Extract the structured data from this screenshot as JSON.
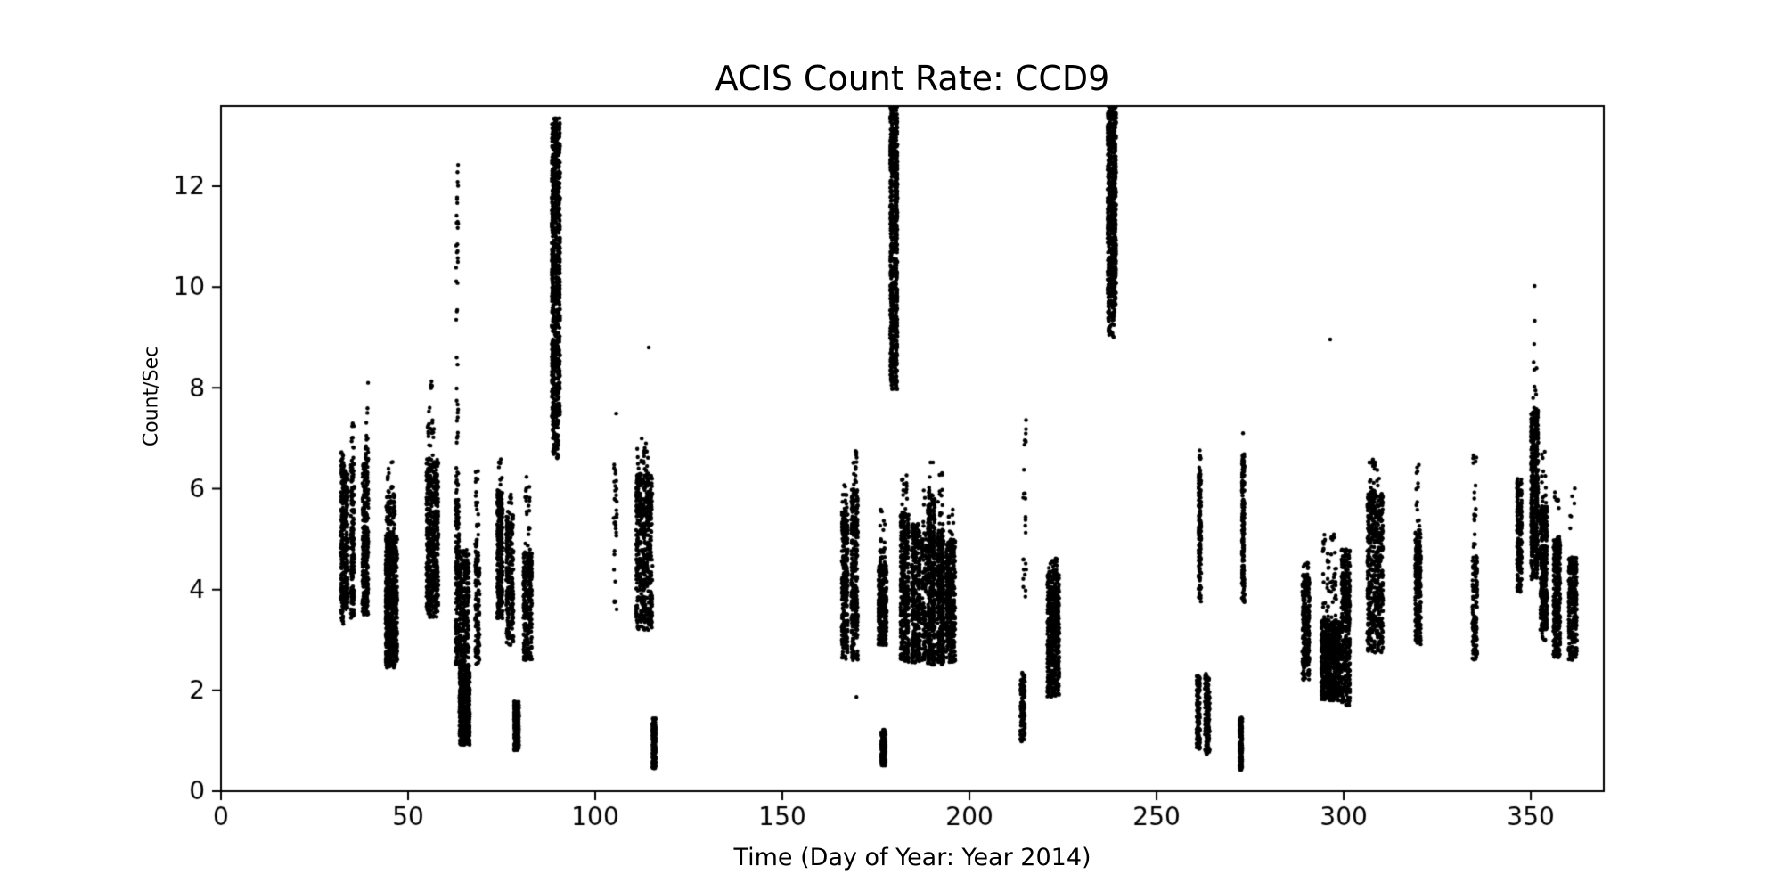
{
  "figure": {
    "background": "#ffffff",
    "frame_color": "#000000"
  },
  "chart_data": {
    "type": "scatter",
    "title": "ACIS Count Rate: CCD9",
    "xlabel": "Time (Day of Year: Year 2014)",
    "ylabel": "Count/Sec",
    "xlim": [
      0,
      369.5
    ],
    "ylim": [
      0,
      13.59
    ],
    "xticks": [
      0,
      50,
      100,
      150,
      200,
      250,
      300,
      350
    ],
    "yticks": [
      0,
      2,
      4,
      6,
      8,
      10,
      12
    ],
    "grid": false,
    "legend": null,
    "marker_color": "#000000",
    "marker_radius_px": 2.2,
    "seed": 1337,
    "clusters_format": [
      "day_start",
      "day_end",
      "rate_min",
      "rate_max",
      "n_points"
    ],
    "clusters": [
      [
        32.0,
        32.9,
        3.5,
        6.3,
        170
      ],
      [
        32.0,
        32.9,
        6.3,
        6.75,
        25
      ],
      [
        32.2,
        32.7,
        3.3,
        3.5,
        8
      ],
      [
        33.2,
        33.9,
        3.6,
        6.4,
        150
      ],
      [
        34.7,
        35.6,
        3.4,
        6.5,
        170
      ],
      [
        34.9,
        35.5,
        6.5,
        7.3,
        10
      ],
      [
        37.8,
        38.5,
        3.5,
        6.5,
        150
      ],
      [
        38.6,
        39.4,
        3.5,
        6.9,
        150
      ],
      [
        38.8,
        39.4,
        6.9,
        7.6,
        7
      ],
      [
        43.9,
        47.2,
        2.45,
        5.15,
        650
      ],
      [
        44.1,
        46.6,
        5.15,
        5.9,
        55
      ],
      [
        44.4,
        46.2,
        5.9,
        6.6,
        13
      ],
      [
        54.8,
        58.2,
        3.45,
        6.6,
        500
      ],
      [
        55.1,
        57.2,
        6.6,
        7.6,
        20
      ],
      [
        55.6,
        56.4,
        7.6,
        8.15,
        6
      ],
      [
        62.8,
        63.4,
        5.8,
        12.65,
        48
      ],
      [
        62.7,
        63.6,
        4.8,
        5.8,
        55
      ],
      [
        62.6,
        66.4,
        2.5,
        4.8,
        400
      ],
      [
        63.6,
        66.6,
        0.92,
        2.5,
        480
      ],
      [
        67.8,
        69.2,
        2.5,
        5.0,
        120
      ],
      [
        68.0,
        68.9,
        5.0,
        6.35,
        16
      ],
      [
        73.7,
        75.4,
        3.4,
        5.95,
        260
      ],
      [
        73.9,
        75.1,
        5.95,
        6.65,
        11
      ],
      [
        76.1,
        78.3,
        2.9,
        5.5,
        240
      ],
      [
        76.4,
        77.8,
        5.5,
        5.9,
        9
      ],
      [
        78.2,
        79.7,
        0.8,
        1.78,
        240
      ],
      [
        80.7,
        83.2,
        2.6,
        4.75,
        280
      ],
      [
        81.0,
        82.7,
        4.75,
        6.25,
        20
      ],
      [
        88.3,
        90.7,
        7.4,
        13.35,
        800
      ],
      [
        88.5,
        90.3,
        6.6,
        7.4,
        55
      ],
      [
        104.9,
        105.8,
        3.6,
        6.6,
        32
      ],
      [
        110.8,
        115.4,
        3.2,
        6.3,
        520
      ],
      [
        111.0,
        114.2,
        6.3,
        7.0,
        22
      ],
      [
        115.3,
        116.2,
        0.45,
        1.45,
        250
      ],
      [
        165.8,
        167.6,
        2.6,
        5.6,
        280
      ],
      [
        166.0,
        167.3,
        5.6,
        6.1,
        10
      ],
      [
        168.3,
        170.3,
        2.6,
        6.0,
        300
      ],
      [
        168.6,
        170.0,
        6.0,
        6.75,
        16
      ],
      [
        175.6,
        178.0,
        2.9,
        4.5,
        270
      ],
      [
        175.9,
        177.6,
        4.5,
        5.6,
        26
      ],
      [
        176.4,
        177.6,
        0.5,
        1.22,
        200
      ],
      [
        178.7,
        180.9,
        7.95,
        13.59,
        750
      ],
      [
        181.5,
        183.9,
        2.55,
        5.5,
        340
      ],
      [
        181.8,
        183.5,
        5.5,
        6.3,
        16
      ],
      [
        184.5,
        186.9,
        2.55,
        5.3,
        340
      ],
      [
        187.3,
        188.5,
        2.6,
        5.0,
        110
      ],
      [
        187.5,
        188.3,
        5.0,
        6.1,
        7
      ],
      [
        188.7,
        190.9,
        2.5,
        5.8,
        380
      ],
      [
        189.0,
        190.5,
        5.8,
        6.55,
        12
      ],
      [
        191.3,
        193.2,
        2.5,
        5.2,
        340
      ],
      [
        191.6,
        192.9,
        5.2,
        6.45,
        14
      ],
      [
        193.6,
        196.3,
        2.55,
        5.0,
        380
      ],
      [
        193.9,
        195.9,
        5.0,
        5.6,
        9
      ],
      [
        214.3,
        215.2,
        3.85,
        7.5,
        26
      ],
      [
        213.6,
        214.8,
        0.97,
        2.33,
        130
      ],
      [
        220.7,
        224.1,
        1.87,
        4.3,
        500
      ],
      [
        221.0,
        223.5,
        4.3,
        4.62,
        25
      ],
      [
        236.8,
        239.3,
        9.6,
        13.59,
        640
      ],
      [
        236.9,
        238.9,
        9.0,
        9.6,
        48
      ],
      [
        260.7,
        261.6,
        0.83,
        2.3,
        120
      ],
      [
        262.9,
        264.2,
        0.7,
        2.33,
        150
      ],
      [
        261.2,
        261.9,
        3.75,
        6.3,
        150
      ],
      [
        261.3,
        261.8,
        6.3,
        6.9,
        9
      ],
      [
        272.2,
        272.9,
        0.42,
        1.46,
        170
      ],
      [
        272.8,
        273.5,
        3.7,
        6.7,
        190
      ],
      [
        288.8,
        291.0,
        2.2,
        4.3,
        240
      ],
      [
        289.0,
        290.6,
        4.3,
        4.55,
        9
      ],
      [
        293.9,
        299.2,
        1.8,
        3.4,
        650
      ],
      [
        294.2,
        298.2,
        3.4,
        5.1,
        55
      ],
      [
        299.3,
        301.8,
        1.7,
        4.8,
        340
      ],
      [
        306.2,
        310.6,
        2.75,
        5.9,
        500
      ],
      [
        306.5,
        309.6,
        5.9,
        6.6,
        24
      ],
      [
        319.0,
        320.7,
        2.9,
        5.2,
        230
      ],
      [
        319.2,
        320.4,
        5.2,
        6.5,
        13
      ],
      [
        334.3,
        335.8,
        2.6,
        4.7,
        130
      ],
      [
        334.5,
        335.6,
        4.7,
        6.7,
        18
      ],
      [
        346.2,
        347.7,
        3.95,
        6.2,
        180
      ],
      [
        349.9,
        352.1,
        4.2,
        7.55,
        500
      ],
      [
        350.4,
        351.6,
        7.55,
        8.6,
        9
      ],
      [
        352.4,
        354.5,
        3.2,
        5.65,
        340
      ],
      [
        352.7,
        354.2,
        5.65,
        6.75,
        13
      ],
      [
        353.0,
        354.0,
        2.95,
        3.2,
        7
      ],
      [
        355.9,
        358.0,
        2.65,
        5.05,
        300
      ],
      [
        356.2,
        357.6,
        5.6,
        5.95,
        7
      ],
      [
        360.0,
        362.4,
        2.6,
        4.65,
        270
      ],
      [
        360.4,
        362.0,
        5.2,
        6.1,
        6
      ]
    ],
    "outliers_format": [
      "day",
      "rate"
    ],
    "outliers": [
      [
        39.3,
        8.1
      ],
      [
        105.6,
        7.49
      ],
      [
        114.3,
        8.8
      ],
      [
        169.8,
        1.87
      ],
      [
        214.1,
        2.35
      ],
      [
        273.1,
        7.1
      ],
      [
        296.4,
        8.96
      ],
      [
        350.9,
        8.87
      ],
      [
        351.05,
        9.33
      ],
      [
        351.0,
        10.02
      ]
    ]
  }
}
